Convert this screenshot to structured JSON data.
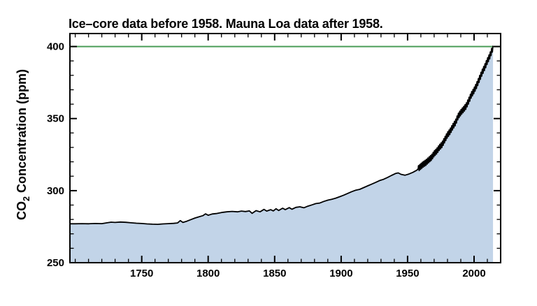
{
  "figure": {
    "title": "Ice–core data before 1958. Mauna Loa data after 1958.",
    "y_axis_label": {
      "prefix": "CO",
      "subscript": "2",
      "suffix": " Concentration (ppm)"
    }
  },
  "chart_data": {
    "type": "area",
    "title": "Ice–core data before 1958. Mauna Loa data after 1958.",
    "xlabel": "",
    "ylabel": "CO2 Concentration (ppm)",
    "xlim": [
      1696,
      2020
    ],
    "ylim": [
      250,
      409
    ],
    "xticks": [
      1750,
      1800,
      1850,
      1900,
      1950,
      2000
    ],
    "yticks": [
      250,
      300,
      350,
      400
    ],
    "minor_tick_step_x_years": 10,
    "minor_tick_step_y_ppm": 10,
    "grid": false,
    "legend": false,
    "colors": {
      "area_fill": "#c2d4e8",
      "line": "#000000",
      "reference_line": "#4a9d58",
      "frame": "#000000",
      "background": "#ffffff"
    },
    "reference_line": {
      "y": 400,
      "color": "#4a9d58"
    },
    "seasonal_cycle": {
      "start_year": 1958,
      "amplitude_ppm": 1.9
    },
    "series": [
      {
        "name": "CO2 concentration (ppm)",
        "source_pre_1958": "Ice-core data",
        "source_post_1958": "Mauna Loa data",
        "points": [
          [
            1696,
            277.0
          ],
          [
            1700,
            277.0
          ],
          [
            1705,
            277.1
          ],
          [
            1710,
            277.0
          ],
          [
            1715,
            277.2
          ],
          [
            1720,
            277.1
          ],
          [
            1724,
            277.7
          ],
          [
            1727,
            278.1
          ],
          [
            1730,
            277.9
          ],
          [
            1734,
            278.2
          ],
          [
            1738,
            278.0
          ],
          [
            1742,
            277.7
          ],
          [
            1746,
            277.4
          ],
          [
            1750,
            277.2
          ],
          [
            1754,
            276.9
          ],
          [
            1758,
            276.7
          ],
          [
            1762,
            276.6
          ],
          [
            1766,
            276.9
          ],
          [
            1770,
            277.1
          ],
          [
            1774,
            277.3
          ],
          [
            1777,
            277.6
          ],
          [
            1779,
            279.2
          ],
          [
            1781,
            277.9
          ],
          [
            1784,
            278.8
          ],
          [
            1787,
            279.9
          ],
          [
            1790,
            281.0
          ],
          [
            1793,
            281.8
          ],
          [
            1796,
            282.6
          ],
          [
            1798,
            283.9
          ],
          [
            1800,
            282.9
          ],
          [
            1803,
            283.8
          ],
          [
            1806,
            284.1
          ],
          [
            1810,
            284.8
          ],
          [
            1814,
            285.3
          ],
          [
            1818,
            285.6
          ],
          [
            1822,
            285.3
          ],
          [
            1825,
            285.8
          ],
          [
            1828,
            285.5
          ],
          [
            1831,
            285.9
          ],
          [
            1833,
            284.2
          ],
          [
            1836,
            286.1
          ],
          [
            1839,
            285.3
          ],
          [
            1842,
            287.0
          ],
          [
            1844,
            285.8
          ],
          [
            1847,
            286.8
          ],
          [
            1849,
            285.9
          ],
          [
            1851,
            287.4
          ],
          [
            1853,
            286.2
          ],
          [
            1856,
            287.8
          ],
          [
            1858,
            286.8
          ],
          [
            1861,
            288.2
          ],
          [
            1863,
            287.1
          ],
          [
            1866,
            288.4
          ],
          [
            1869,
            288.8
          ],
          [
            1872,
            288.1
          ],
          [
            1875,
            289.2
          ],
          [
            1878,
            290.1
          ],
          [
            1881,
            291.0
          ],
          [
            1884,
            291.4
          ],
          [
            1887,
            292.5
          ],
          [
            1890,
            293.4
          ],
          [
            1893,
            294.0
          ],
          [
            1896,
            294.8
          ],
          [
            1899,
            295.8
          ],
          [
            1902,
            296.9
          ],
          [
            1905,
            298.1
          ],
          [
            1908,
            299.3
          ],
          [
            1911,
            300.3
          ],
          [
            1914,
            300.9
          ],
          [
            1917,
            302.1
          ],
          [
            1920,
            303.3
          ],
          [
            1923,
            304.5
          ],
          [
            1926,
            305.7
          ],
          [
            1929,
            307.0
          ],
          [
            1932,
            307.9
          ],
          [
            1935,
            309.2
          ],
          [
            1938,
            310.6
          ],
          [
            1941,
            311.9
          ],
          [
            1943,
            312.3
          ],
          [
            1945,
            311.3
          ],
          [
            1948,
            310.7
          ],
          [
            1951,
            311.5
          ],
          [
            1954,
            312.7
          ],
          [
            1957,
            314.2
          ],
          [
            1958,
            315.2
          ],
          [
            1960,
            316.9
          ],
          [
            1962,
            318.4
          ],
          [
            1964,
            319.6
          ],
          [
            1966,
            321.4
          ],
          [
            1968,
            323.0
          ],
          [
            1970,
            325.7
          ],
          [
            1972,
            327.5
          ],
          [
            1974,
            330.1
          ],
          [
            1976,
            332.0
          ],
          [
            1978,
            335.4
          ],
          [
            1980,
            338.7
          ],
          [
            1982,
            341.1
          ],
          [
            1984,
            344.4
          ],
          [
            1986,
            347.2
          ],
          [
            1988,
            351.5
          ],
          [
            1990,
            354.2
          ],
          [
            1992,
            356.3
          ],
          [
            1994,
            358.6
          ],
          [
            1996,
            362.4
          ],
          [
            1998,
            366.5
          ],
          [
            2000,
            369.5
          ],
          [
            2002,
            373.2
          ],
          [
            2004,
            377.5
          ],
          [
            2006,
            381.9
          ],
          [
            2008,
            385.6
          ],
          [
            2010,
            389.9
          ],
          [
            2012,
            393.8
          ],
          [
            2014,
            398.6
          ]
        ]
      }
    ]
  }
}
